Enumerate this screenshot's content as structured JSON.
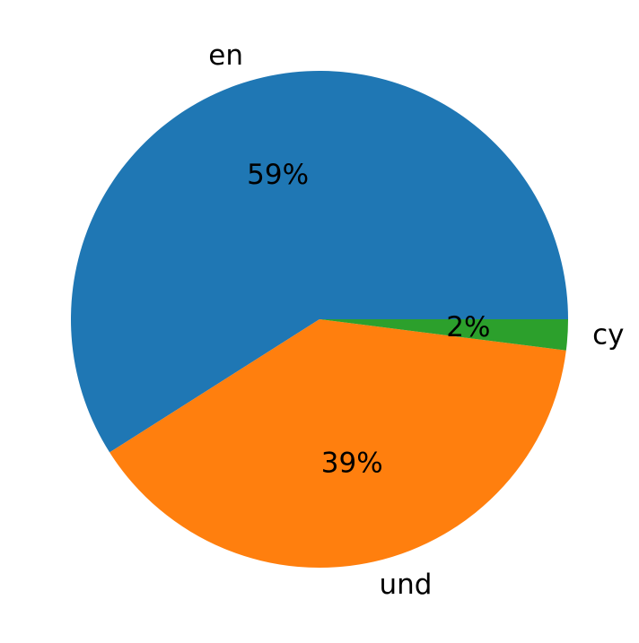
{
  "chart_data": {
    "type": "pie",
    "categories": [
      "en",
      "und",
      "cy"
    ],
    "values": [
      59,
      39,
      2
    ],
    "value_labels": [
      "59%",
      "39%",
      "2%"
    ],
    "colors": [
      "#1f77b4",
      "#ff7f0e",
      "#2ca02c"
    ],
    "start_angle": 0
  }
}
